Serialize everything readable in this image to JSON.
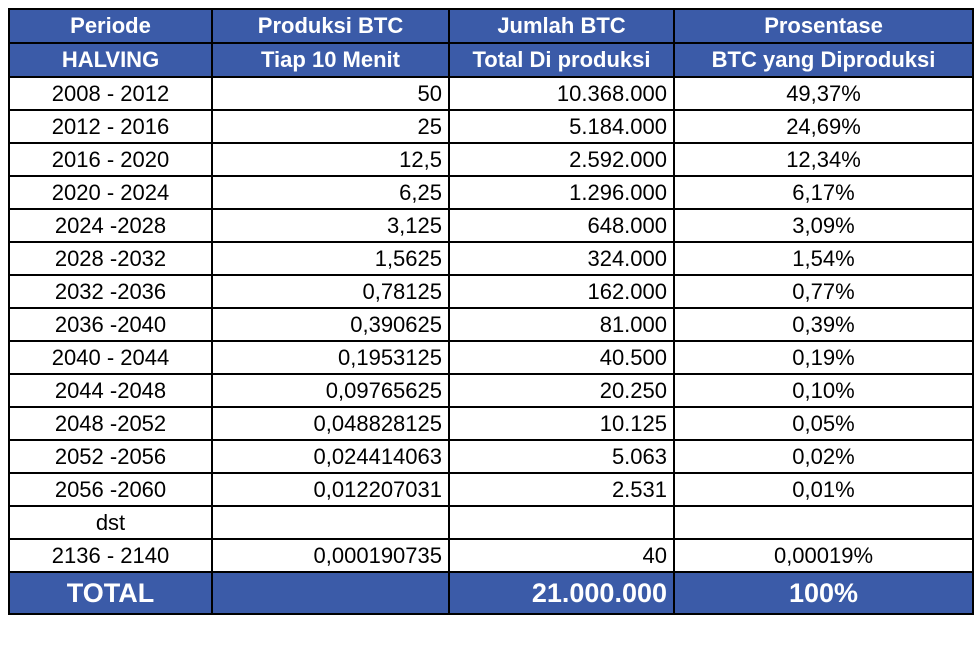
{
  "header": {
    "row1": [
      "Periode",
      "Produksi BTC",
      "Jumlah BTC",
      "Prosentase"
    ],
    "row2": [
      "HALVING",
      "Tiap 10 Menit",
      "Total Di produksi",
      "BTC yang Diproduksi"
    ]
  },
  "rows": [
    {
      "periode": "2008 - 2012",
      "produksi": "50",
      "jumlah": "10.368.000",
      "prosentase": "49,37%"
    },
    {
      "periode": "2012 - 2016",
      "produksi": "25",
      "jumlah": "5.184.000",
      "prosentase": "24,69%"
    },
    {
      "periode": "2016 - 2020",
      "produksi": "12,5",
      "jumlah": "2.592.000",
      "prosentase": "12,34%"
    },
    {
      "periode": "2020 - 2024",
      "produksi": "6,25",
      "jumlah": "1.296.000",
      "prosentase": "6,17%"
    },
    {
      "periode": "2024 -2028",
      "produksi": "3,125",
      "jumlah": "648.000",
      "prosentase": "3,09%"
    },
    {
      "periode": "2028 -2032",
      "produksi": "1,5625",
      "jumlah": "324.000",
      "prosentase": "1,54%"
    },
    {
      "periode": "2032 -2036",
      "produksi": "0,78125",
      "jumlah": "162.000",
      "prosentase": "0,77%"
    },
    {
      "periode": "2036 -2040",
      "produksi": "0,390625",
      "jumlah": "81.000",
      "prosentase": "0,39%"
    },
    {
      "periode": "2040 - 2044",
      "produksi": "0,1953125",
      "jumlah": "40.500",
      "prosentase": "0,19%"
    },
    {
      "periode": "2044 -2048",
      "produksi": "0,09765625",
      "jumlah": "20.250",
      "prosentase": "0,10%"
    },
    {
      "periode": "2048 -2052",
      "produksi": "0,048828125",
      "jumlah": "10.125",
      "prosentase": "0,05%"
    },
    {
      "periode": "2052 -2056",
      "produksi": "0,024414063",
      "jumlah": "5.063",
      "prosentase": "0,02%"
    },
    {
      "periode": "2056 -2060",
      "produksi": "0,012207031",
      "jumlah": "2.531",
      "prosentase": "0,01%"
    },
    {
      "periode": "dst",
      "produksi": "",
      "jumlah": "",
      "prosentase": ""
    },
    {
      "periode": "2136 - 2140",
      "produksi": "0,000190735",
      "jumlah": "40",
      "prosentase": "0,00019%"
    }
  ],
  "total": {
    "label": "TOTAL",
    "produksi": "",
    "jumlah": "21.000.000",
    "prosentase": "100%"
  },
  "colors": {
    "header_bg": "#3b5ba8",
    "header_text": "#ffffff",
    "border": "#000000"
  }
}
